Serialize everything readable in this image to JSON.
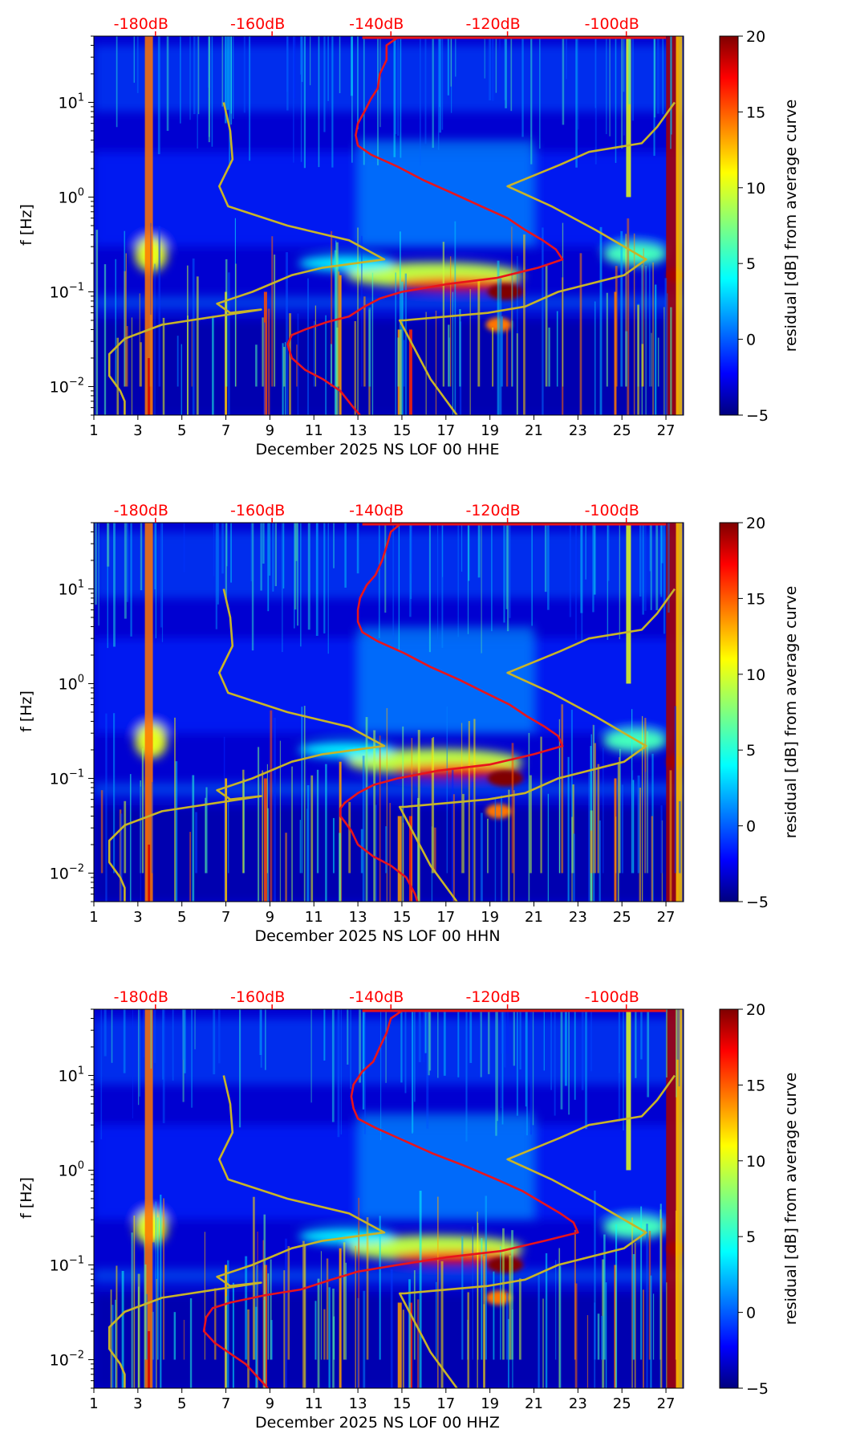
{
  "figure": {
    "description_free": true,
    "colormap": "jet",
    "colors": {
      "top_axis_text": "#ff0000",
      "red_curve": "#e8141c",
      "yellow_curve": "#c8b428",
      "background": "#ffffff"
    }
  },
  "chart_data": [
    {
      "type": "heatmap",
      "panel": "HHE",
      "xlabel": "December 2025 NS LOF 00 HHE",
      "ylabel": "f [Hz]",
      "xlim": [
        1,
        27.8
      ],
      "ylim": [
        0.005,
        50
      ],
      "yscale": "log",
      "x_ticks": [
        "1",
        "3",
        "5",
        "7",
        "9",
        "11",
        "13",
        "15",
        "17",
        "19",
        "21",
        "23",
        "25",
        "27"
      ],
      "y_ticks": [
        {
          "value": 0.01,
          "base": "10",
          "exp": "−2"
        },
        {
          "value": 0.1,
          "base": "10",
          "exp": "−1"
        },
        {
          "value": 1,
          "base": "10",
          "exp": "0"
        },
        {
          "value": 10,
          "base": "10",
          "exp": "1"
        }
      ],
      "top_ticks": [
        {
          "x": 3.8,
          "label": "-180dB"
        },
        {
          "x": 9.1,
          "label": "-160dB"
        },
        {
          "x": 14.5,
          "label": "-140dB"
        },
        {
          "x": 19.8,
          "label": "-120dB"
        },
        {
          "x": 25.2,
          "label": "-100dB"
        }
      ],
      "colorbar": {
        "label": "residual [dB] from average curve",
        "min": -5,
        "max": 20,
        "ticks": [
          "20",
          "15",
          "10",
          "5",
          "0",
          "−5"
        ]
      },
      "red_curve": [
        [
          14.9,
          50
        ],
        [
          14.3,
          40
        ],
        [
          14.3,
          28
        ],
        [
          14.0,
          20
        ],
        [
          13.9,
          14
        ],
        [
          13.6,
          11
        ],
        [
          13.3,
          8
        ],
        [
          13.0,
          6
        ],
        [
          12.9,
          4.5
        ],
        [
          13.0,
          3.5
        ],
        [
          13.6,
          2.8
        ],
        [
          14.8,
          2.1
        ],
        [
          16.0,
          1.5
        ],
        [
          17.3,
          1.1
        ],
        [
          18.6,
          0.8
        ],
        [
          19.8,
          0.6
        ],
        [
          20.6,
          0.45
        ],
        [
          21.4,
          0.35
        ],
        [
          22.0,
          0.28
        ],
        [
          22.3,
          0.22
        ],
        [
          21.2,
          0.18
        ],
        [
          19.3,
          0.14
        ],
        [
          17.0,
          0.12
        ],
        [
          15.0,
          0.1
        ],
        [
          14.0,
          0.085
        ],
        [
          13.3,
          0.07
        ],
        [
          12.6,
          0.055
        ],
        [
          11.6,
          0.048
        ],
        [
          10.6,
          0.04
        ],
        [
          10.0,
          0.035
        ],
        [
          9.8,
          0.028
        ],
        [
          10.0,
          0.02
        ],
        [
          10.6,
          0.015
        ],
        [
          11.4,
          0.012
        ],
        [
          12.2,
          0.009
        ],
        [
          12.8,
          0.006
        ],
        [
          13.1,
          0.005
        ]
      ],
      "yellow_curve": [
        [
          6.9,
          10
        ],
        [
          7.2,
          5
        ],
        [
          7.3,
          2.5
        ],
        [
          6.7,
          1.3
        ],
        [
          7.1,
          0.8
        ],
        [
          9.8,
          0.5
        ],
        [
          12.6,
          0.35
        ],
        [
          14.2,
          0.22
        ],
        [
          11.4,
          0.18
        ],
        [
          10.0,
          0.15
        ],
        [
          8.2,
          0.1
        ],
        [
          6.6,
          0.075
        ],
        [
          7.2,
          0.06
        ],
        [
          8.6,
          0.065
        ],
        [
          4.1,
          0.045
        ],
        [
          2.4,
          0.032
        ],
        [
          1.7,
          0.022
        ],
        [
          1.7,
          0.013
        ],
        [
          2.2,
          0.009
        ],
        [
          2.4,
          0.007
        ],
        [
          2.4,
          0.005
        ]
      ],
      "yellow_curve_right": [
        [
          17.5,
          0.005
        ],
        [
          16.3,
          0.012
        ],
        [
          14.9,
          0.05
        ],
        [
          15.1,
          0.05
        ],
        [
          18.9,
          0.06
        ],
        [
          20.6,
          0.07
        ],
        [
          22.1,
          0.1
        ],
        [
          25.1,
          0.15
        ],
        [
          26.1,
          0.22
        ],
        [
          23.8,
          0.45
        ],
        [
          21.8,
          0.8
        ],
        [
          19.8,
          1.3
        ],
        [
          22.2,
          2.2
        ],
        [
          23.5,
          3.0
        ],
        [
          25.9,
          3.7
        ],
        [
          26.6,
          5.5
        ],
        [
          27.4,
          10
        ]
      ]
    },
    {
      "type": "heatmap",
      "panel": "HHN",
      "xlabel": "December 2025 NS LOF 00 HHN",
      "ylabel": "f [Hz]",
      "xlim": [
        1,
        27.8
      ],
      "ylim": [
        0.005,
        50
      ],
      "yscale": "log",
      "x_ticks": [
        "1",
        "3",
        "5",
        "7",
        "9",
        "11",
        "13",
        "15",
        "17",
        "19",
        "21",
        "23",
        "25",
        "27"
      ],
      "y_ticks": [
        {
          "value": 0.01,
          "base": "10",
          "exp": "−2"
        },
        {
          "value": 0.1,
          "base": "10",
          "exp": "−1"
        },
        {
          "value": 1,
          "base": "10",
          "exp": "0"
        },
        {
          "value": 10,
          "base": "10",
          "exp": "1"
        }
      ],
      "top_ticks": [
        {
          "x": 3.8,
          "label": "-180dB"
        },
        {
          "x": 9.1,
          "label": "-160dB"
        },
        {
          "x": 14.5,
          "label": "-140dB"
        },
        {
          "x": 19.8,
          "label": "-120dB"
        },
        {
          "x": 25.2,
          "label": "-100dB"
        }
      ],
      "colorbar": {
        "label": "residual [dB] from average curve",
        "min": -5,
        "max": 20,
        "ticks": [
          "20",
          "15",
          "10",
          "5",
          "0",
          "−5"
        ]
      },
      "red_curve": [
        [
          15.0,
          50
        ],
        [
          14.5,
          40
        ],
        [
          14.3,
          28
        ],
        [
          14.1,
          20
        ],
        [
          13.8,
          14
        ],
        [
          13.4,
          11
        ],
        [
          13.1,
          8
        ],
        [
          13.0,
          6
        ],
        [
          13.0,
          4.5
        ],
        [
          13.2,
          3.5
        ],
        [
          13.9,
          2.8
        ],
        [
          15.1,
          2.1
        ],
        [
          16.3,
          1.5
        ],
        [
          17.6,
          1.1
        ],
        [
          18.8,
          0.8
        ],
        [
          19.9,
          0.6
        ],
        [
          20.7,
          0.45
        ],
        [
          21.5,
          0.35
        ],
        [
          22.1,
          0.28
        ],
        [
          22.3,
          0.22
        ],
        [
          21.0,
          0.18
        ],
        [
          19.0,
          0.14
        ],
        [
          16.6,
          0.12
        ],
        [
          14.8,
          0.1
        ],
        [
          13.7,
          0.085
        ],
        [
          13.0,
          0.07
        ],
        [
          12.4,
          0.055
        ],
        [
          12.2,
          0.048
        ],
        [
          12.2,
          0.04
        ],
        [
          12.4,
          0.035
        ],
        [
          12.7,
          0.028
        ],
        [
          13.0,
          0.02
        ],
        [
          13.7,
          0.015
        ],
        [
          14.5,
          0.012
        ],
        [
          15.2,
          0.009
        ],
        [
          15.6,
          0.006
        ],
        [
          15.7,
          0.005
        ]
      ],
      "yellow_curve": [
        [
          6.9,
          10
        ],
        [
          7.2,
          5
        ],
        [
          7.3,
          2.5
        ],
        [
          6.7,
          1.3
        ],
        [
          7.1,
          0.8
        ],
        [
          9.8,
          0.5
        ],
        [
          12.6,
          0.35
        ],
        [
          14.2,
          0.22
        ],
        [
          11.4,
          0.18
        ],
        [
          10.0,
          0.15
        ],
        [
          8.2,
          0.1
        ],
        [
          6.6,
          0.075
        ],
        [
          7.2,
          0.06
        ],
        [
          8.6,
          0.065
        ],
        [
          4.1,
          0.045
        ],
        [
          2.4,
          0.032
        ],
        [
          1.7,
          0.022
        ],
        [
          1.7,
          0.013
        ],
        [
          2.2,
          0.009
        ],
        [
          2.4,
          0.007
        ],
        [
          2.4,
          0.005
        ]
      ],
      "yellow_curve_right": [
        [
          17.5,
          0.005
        ],
        [
          16.3,
          0.012
        ],
        [
          14.9,
          0.05
        ],
        [
          15.1,
          0.05
        ],
        [
          18.9,
          0.06
        ],
        [
          20.6,
          0.07
        ],
        [
          22.1,
          0.1
        ],
        [
          25.1,
          0.15
        ],
        [
          26.1,
          0.22
        ],
        [
          23.8,
          0.45
        ],
        [
          21.8,
          0.8
        ],
        [
          19.8,
          1.3
        ],
        [
          22.2,
          2.2
        ],
        [
          23.5,
          3.0
        ],
        [
          25.9,
          3.7
        ],
        [
          26.6,
          5.5
        ],
        [
          27.4,
          10
        ]
      ]
    },
    {
      "type": "heatmap",
      "panel": "HHZ",
      "xlabel": "December 2025 NS LOF 00 HHZ",
      "ylabel": "f [Hz]",
      "xlim": [
        1,
        27.8
      ],
      "ylim": [
        0.005,
        50
      ],
      "yscale": "log",
      "x_ticks": [
        "1",
        "3",
        "5",
        "7",
        "9",
        "11",
        "13",
        "15",
        "17",
        "19",
        "21",
        "23",
        "25",
        "27"
      ],
      "y_ticks": [
        {
          "value": 0.01,
          "base": "10",
          "exp": "−2"
        },
        {
          "value": 0.1,
          "base": "10",
          "exp": "−1"
        },
        {
          "value": 1,
          "base": "10",
          "exp": "0"
        },
        {
          "value": 10,
          "base": "10",
          "exp": "1"
        }
      ],
      "top_ticks": [
        {
          "x": 3.8,
          "label": "-180dB"
        },
        {
          "x": 9.1,
          "label": "-160dB"
        },
        {
          "x": 14.5,
          "label": "-140dB"
        },
        {
          "x": 19.8,
          "label": "-120dB"
        },
        {
          "x": 25.2,
          "label": "-100dB"
        }
      ],
      "colorbar": {
        "label": "residual [dB] from average curve",
        "min": -5,
        "max": 20,
        "ticks": [
          "20",
          "15",
          "10",
          "5",
          "0",
          "−5"
        ]
      },
      "red_curve": [
        [
          15.1,
          50
        ],
        [
          14.5,
          40
        ],
        [
          14.3,
          28
        ],
        [
          14.0,
          20
        ],
        [
          13.7,
          14
        ],
        [
          13.2,
          11
        ],
        [
          12.8,
          8
        ],
        [
          12.7,
          6
        ],
        [
          12.8,
          4.5
        ],
        [
          13.0,
          3.5
        ],
        [
          13.8,
          2.8
        ],
        [
          15.0,
          2.1
        ],
        [
          16.4,
          1.5
        ],
        [
          17.9,
          1.1
        ],
        [
          19.3,
          0.8
        ],
        [
          20.5,
          0.6
        ],
        [
          21.4,
          0.45
        ],
        [
          22.2,
          0.35
        ],
        [
          22.8,
          0.28
        ],
        [
          23.0,
          0.22
        ],
        [
          21.5,
          0.18
        ],
        [
          19.5,
          0.14
        ],
        [
          17.0,
          0.12
        ],
        [
          14.8,
          0.1
        ],
        [
          13.0,
          0.085
        ],
        [
          11.8,
          0.07
        ],
        [
          10.4,
          0.055
        ],
        [
          8.8,
          0.048
        ],
        [
          7.2,
          0.04
        ],
        [
          6.4,
          0.035
        ],
        [
          6.1,
          0.028
        ],
        [
          6.0,
          0.02
        ],
        [
          6.5,
          0.015
        ],
        [
          7.1,
          0.012
        ],
        [
          7.9,
          0.009
        ],
        [
          8.6,
          0.006
        ],
        [
          8.9,
          0.005
        ]
      ],
      "yellow_curve": [
        [
          6.9,
          10
        ],
        [
          7.2,
          5
        ],
        [
          7.3,
          2.5
        ],
        [
          6.7,
          1.3
        ],
        [
          7.1,
          0.8
        ],
        [
          9.8,
          0.5
        ],
        [
          12.6,
          0.35
        ],
        [
          14.2,
          0.22
        ],
        [
          11.4,
          0.18
        ],
        [
          10.0,
          0.15
        ],
        [
          8.2,
          0.1
        ],
        [
          6.6,
          0.075
        ],
        [
          7.2,
          0.06
        ],
        [
          8.6,
          0.065
        ],
        [
          4.1,
          0.045
        ],
        [
          2.4,
          0.032
        ],
        [
          1.7,
          0.022
        ],
        [
          1.7,
          0.013
        ],
        [
          2.2,
          0.009
        ],
        [
          2.4,
          0.007
        ],
        [
          2.4,
          0.005
        ]
      ],
      "yellow_curve_right": [
        [
          17.5,
          0.005
        ],
        [
          16.3,
          0.012
        ],
        [
          14.9,
          0.05
        ],
        [
          15.1,
          0.05
        ],
        [
          18.9,
          0.06
        ],
        [
          20.6,
          0.07
        ],
        [
          22.1,
          0.1
        ],
        [
          25.1,
          0.15
        ],
        [
          26.1,
          0.22
        ],
        [
          23.8,
          0.45
        ],
        [
          21.8,
          0.8
        ],
        [
          19.8,
          1.3
        ],
        [
          22.2,
          2.2
        ],
        [
          23.5,
          3.0
        ],
        [
          25.9,
          3.7
        ],
        [
          26.6,
          5.5
        ],
        [
          27.4,
          10
        ]
      ]
    }
  ]
}
